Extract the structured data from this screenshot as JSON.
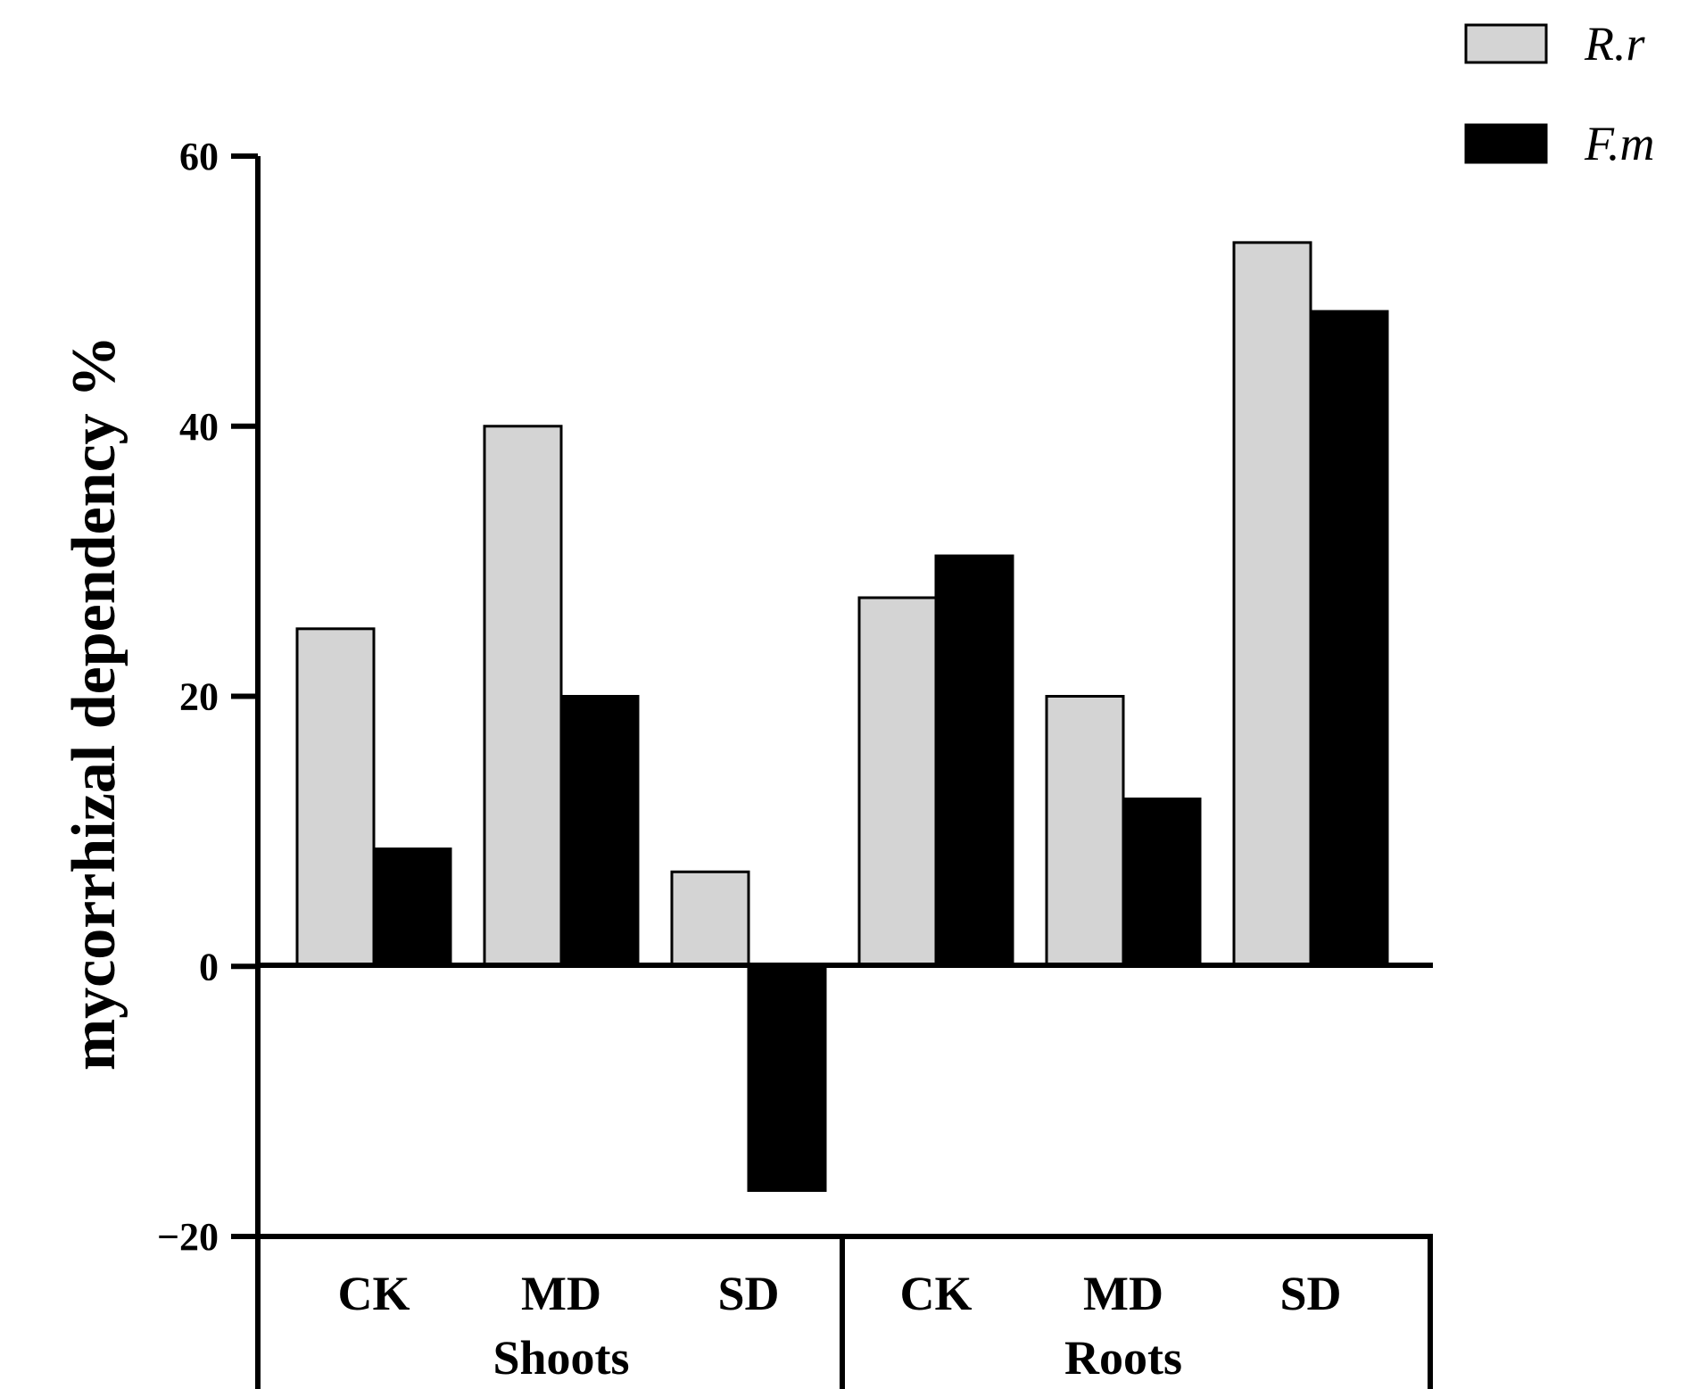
{
  "chart_data": {
    "type": "bar",
    "ylabel": "mycorrhizal dependency %",
    "ylim": [
      -20,
      60
    ],
    "yticks": [
      -20,
      0,
      20,
      40,
      60
    ],
    "ytick_labels": [
      "−20",
      "0",
      "20",
      "40",
      "60"
    ],
    "groups": [
      {
        "name": "Shoots",
        "categories": [
          "CK",
          "MD",
          "SD"
        ]
      },
      {
        "name": "Roots",
        "categories": [
          "CK",
          "MD",
          "SD"
        ]
      }
    ],
    "series": [
      {
        "name": "R.r",
        "color": "#d4d4d4",
        "values": [
          25,
          40,
          7,
          27.3,
          20,
          53.6
        ]
      },
      {
        "name": "F.m",
        "color": "#000000",
        "values": [
          8.7,
          20,
          -16.6,
          30.4,
          12.4,
          48.5
        ]
      }
    ],
    "legend_position": "top-right"
  }
}
